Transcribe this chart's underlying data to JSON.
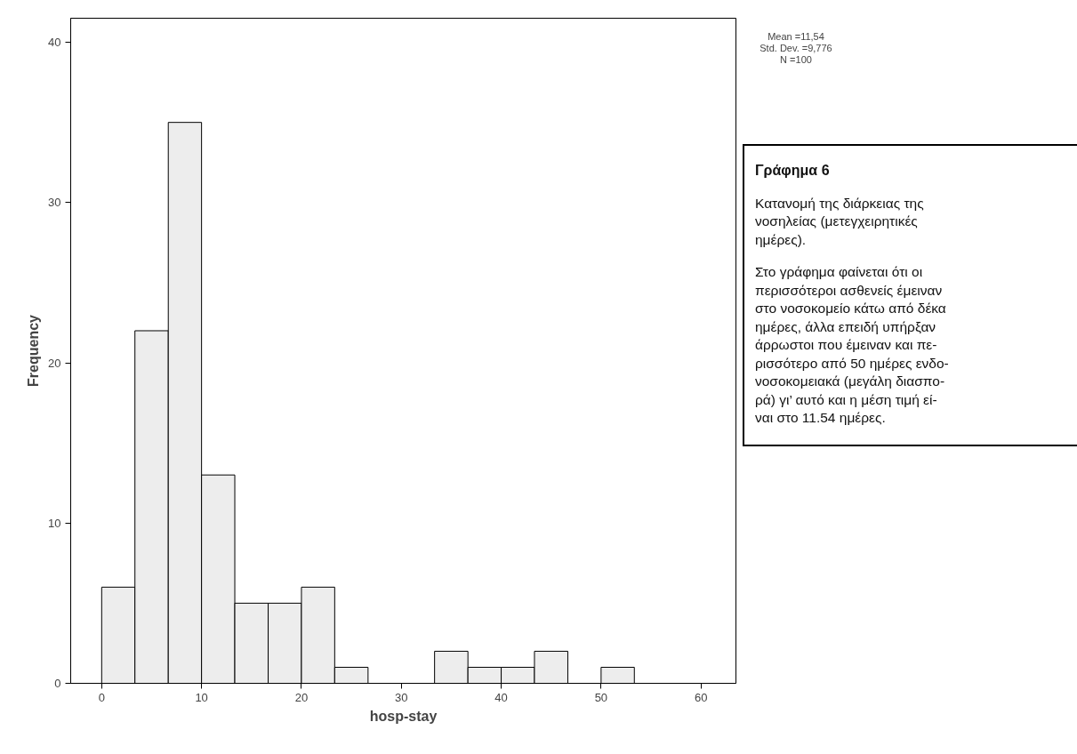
{
  "chart_data": {
    "type": "histogram",
    "xlabel": "hosp-stay",
    "ylabel": "Frequency",
    "bins": [
      0,
      3.33,
      6.67,
      10,
      13.33,
      16.67,
      20,
      23.33,
      26.67,
      30,
      33.33,
      36.67,
      40,
      43.33,
      46.67,
      50,
      53.33
    ],
    "values": [
      6,
      22,
      35,
      13,
      5,
      5,
      6,
      1,
      0,
      0,
      2,
      1,
      1,
      2,
      0,
      1
    ],
    "color": "#ededed",
    "xlim": [
      -3.1,
      63.5
    ],
    "ylim": [
      0,
      41.5
    ],
    "xticks": [
      0,
      10,
      20,
      30,
      40,
      50,
      60
    ],
    "yticks": [
      0,
      10,
      20,
      30,
      40
    ],
    "grid": false,
    "annotations": [
      "Mean =11,54\nStd. Dev. =9,776\nN =100",
      "Γράφημα 6",
      "Κατανομή της διάρκειας της\nνοσηλείας (μετεγχειρητικές\nημέρες).",
      "Στο γράφημα φαίνεται ότι οι\nπερισσότεροι ασθενείς έμειναν\nστο νοσοκομείο κάτω από δέκα\nημέρες, άλλα επειδή υπήρξαν\nάρρωστοι που έμειναν και πε-\nρισσότερο από 50 ημέρες ενδο-\nνοσοκομειακά (μεγάλη διασπο-\nρά) γι’ αυτό και η μέση τιμή εί-\nναι στο 11.54 ημέρες."
    ]
  }
}
